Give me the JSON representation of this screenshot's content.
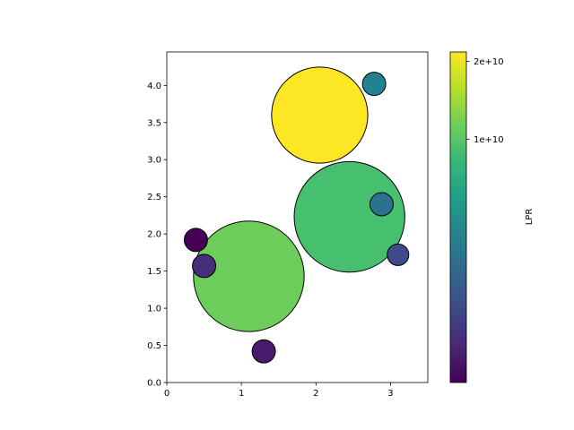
{
  "chart_data": {
    "type": "scatter",
    "title": "",
    "xlabel": "",
    "ylabel": "",
    "xlim": [
      0,
      3.5
    ],
    "ylim": [
      0,
      4.45
    ],
    "x_ticks": [
      0,
      1,
      2,
      3
    ],
    "x_tick_labels": [
      "0",
      "1",
      "2",
      "3"
    ],
    "y_ticks": [
      0.0,
      0.5,
      1.0,
      1.5,
      2.0,
      2.5,
      3.0,
      3.5,
      4.0
    ],
    "y_tick_labels": [
      "0.0",
      "0.5",
      "1.0",
      "1.5",
      "2.0",
      "2.5",
      "3.0",
      "3.5",
      "4.0"
    ],
    "grid": false,
    "point_edge_color": "#000000",
    "points": [
      {
        "x": 1.1,
        "y": 1.43,
        "color": "#6ccd5a",
        "size": 0.742
      },
      {
        "x": 2.05,
        "y": 3.6,
        "color": "#fde725",
        "size": 0.645
      },
      {
        "x": 2.45,
        "y": 2.23,
        "color": "#46c06f",
        "size": 0.742
      },
      {
        "x": 0.5,
        "y": 1.57,
        "color": "#472d7b",
        "size": 0.156
      },
      {
        "x": 3.1,
        "y": 1.72,
        "color": "#3e4a89",
        "size": 0.145
      },
      {
        "x": 2.78,
        "y": 4.02,
        "color": "#21838e",
        "size": 0.156
      },
      {
        "x": 2.88,
        "y": 2.4,
        "color": "#2c718e",
        "size": 0.156
      },
      {
        "x": 0.39,
        "y": 1.92,
        "color": "#440154",
        "size": 0.156
      },
      {
        "x": 1.3,
        "y": 0.42,
        "color": "#481a6c",
        "size": 0.156
      }
    ],
    "colorbar": {
      "label": "LPR",
      "colormap": "viridis",
      "gamma": 0.4,
      "ticks": [
        10000000000,
        20000000000
      ],
      "tick_labels": [
        "1e+10",
        "2e+10"
      ],
      "range": [
        0,
        21500000000
      ],
      "stops": [
        "#440154",
        "#482878",
        "#3e4989",
        "#31688e",
        "#26828e",
        "#1f9e89",
        "#35b779",
        "#6ece58",
        "#b5de2b",
        "#fde725"
      ]
    }
  }
}
